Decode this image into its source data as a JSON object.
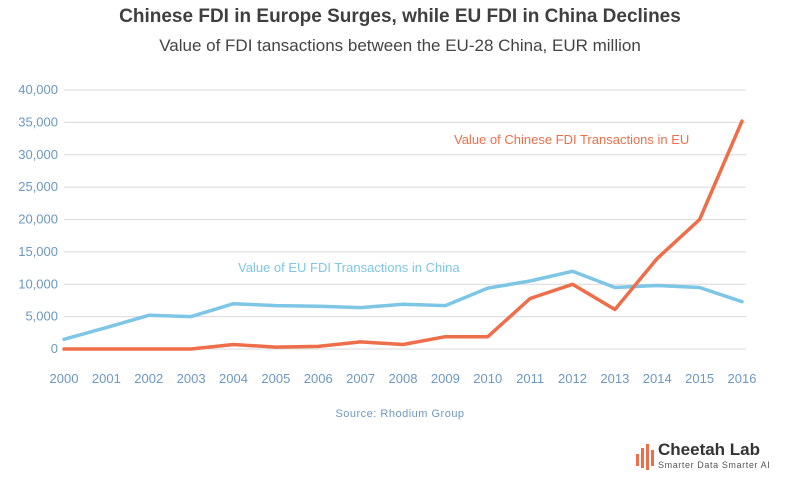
{
  "chart_data": {
    "type": "line",
    "title": "Chinese FDI in Europe Surges, while EU FDI in China Declines",
    "subtitle": "Value of FDI tansactions between the EU-28 China, EUR million",
    "x": [
      "2000",
      "2001",
      "2002",
      "2003",
      "2004",
      "2005",
      "2006",
      "2007",
      "2008",
      "2009",
      "2010",
      "2011",
      "2012",
      "2013",
      "2014",
      "2015",
      "2016"
    ],
    "ylim": [
      0,
      40000
    ],
    "yticks": [
      "0",
      "5,000",
      "10,000",
      "15,000",
      "20,000",
      "25,000",
      "30,000",
      "35,000",
      "40,000"
    ],
    "grid": true,
    "series": [
      {
        "name": "Value of EU FDI Transactions in China",
        "color": "#7ec6e6",
        "values": [
          1500,
          3300,
          5200,
          5000,
          7000,
          6700,
          6600,
          6400,
          6900,
          6700,
          9400,
          10500,
          12000,
          9500,
          9800,
          9500,
          7300
        ]
      },
      {
        "name": "Value of Chinese FDI Transactions in EU",
        "color": "#ee6e4a",
        "values": [
          0,
          0,
          0,
          0,
          700,
          300,
          400,
          1100,
          700,
          1900,
          1900,
          7800,
          10000,
          6100,
          14000,
          20000,
          35200
        ]
      }
    ],
    "source": "Source: Rhodium Group"
  },
  "logo": {
    "name": "Cheetah Lab",
    "tagline": "Smarter Data Smarter AI",
    "color": "#ee6e4a"
  }
}
